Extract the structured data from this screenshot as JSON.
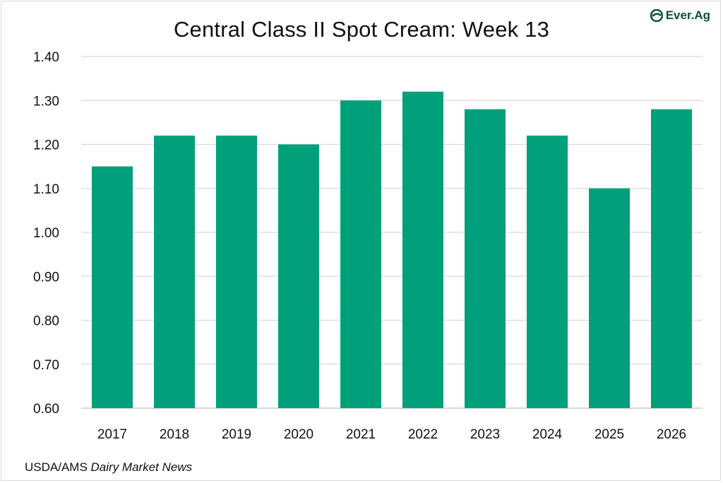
{
  "chart_data": {
    "type": "bar",
    "title": "Central Class II Spot Cream: Week 13",
    "categories": [
      "2017",
      "2018",
      "2019",
      "2020",
      "2021",
      "2022",
      "2023",
      "2024",
      "2025",
      "2026"
    ],
    "values": [
      1.15,
      1.22,
      1.22,
      1.2,
      1.3,
      1.32,
      1.28,
      1.22,
      1.1,
      1.28
    ],
    "ylim": [
      0.6,
      1.4
    ],
    "y_ticks": [
      "0.60",
      "0.70",
      "0.80",
      "0.90",
      "1.00",
      "1.10",
      "1.20",
      "1.30",
      "1.40"
    ],
    "xlabel": "",
    "ylabel": "",
    "grid": true,
    "legend": "none",
    "bar_color": "#00a07a"
  },
  "brand": {
    "name": "Ever.Ag",
    "color": "#0b4f3f",
    "icon": "ever-ag-logo-icon"
  },
  "source": {
    "prefix": "USDA/AMS ",
    "publication": "Dairy Market News"
  }
}
